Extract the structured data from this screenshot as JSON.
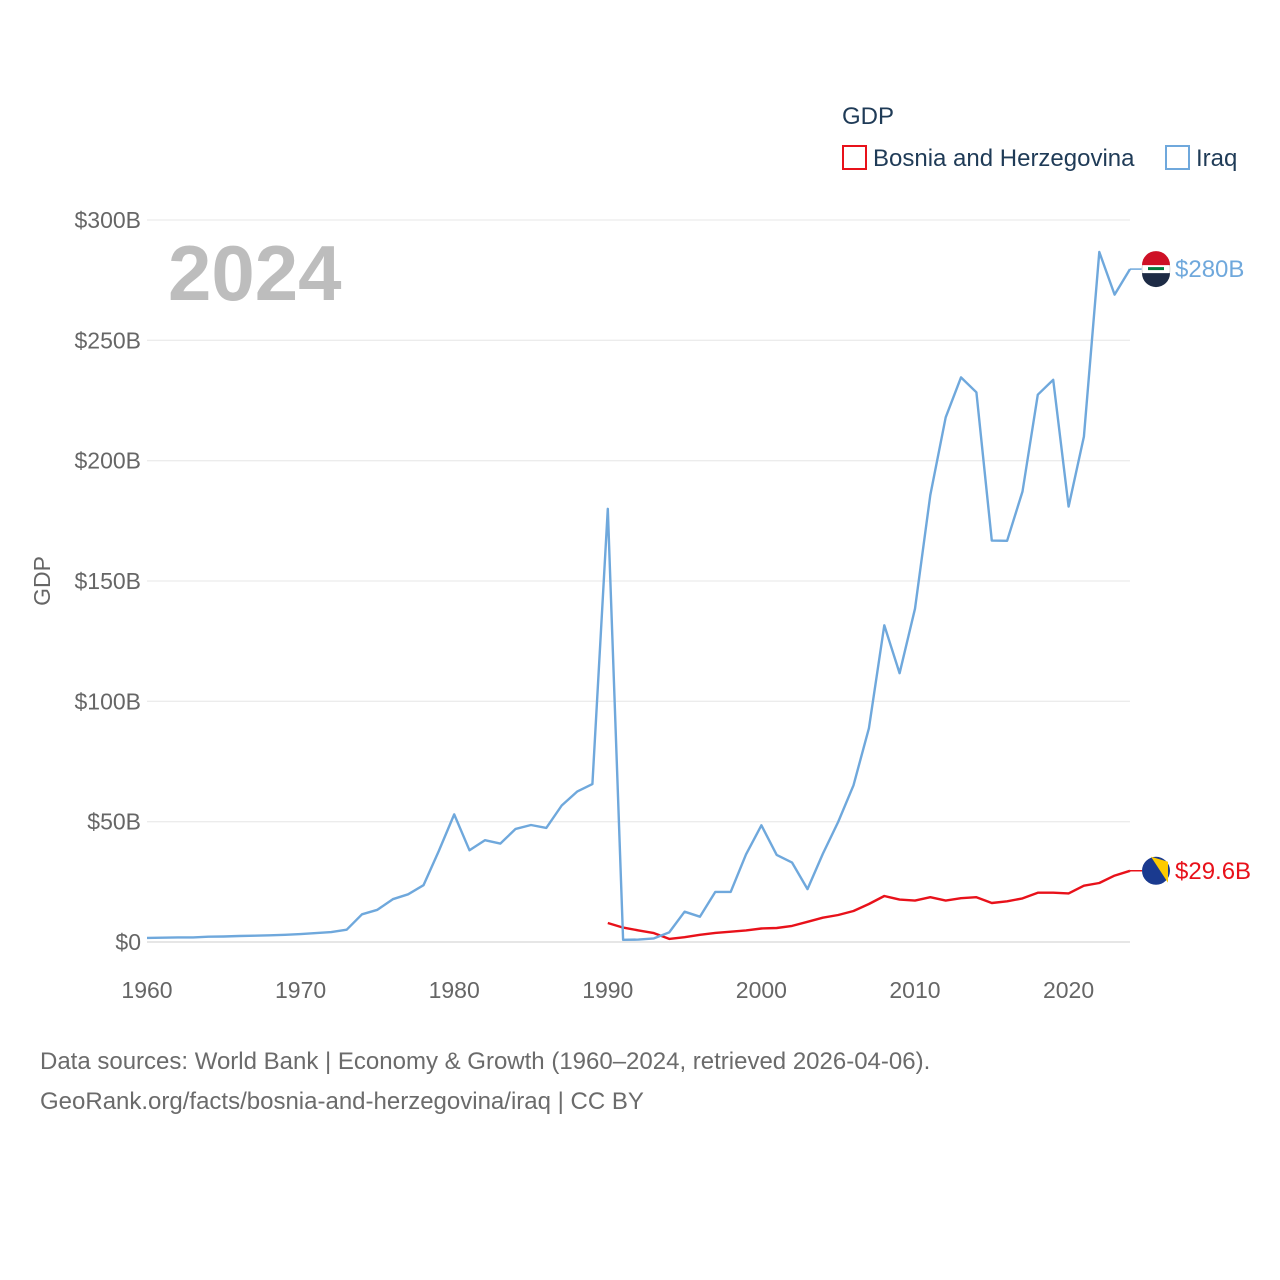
{
  "chart_data": {
    "type": "line",
    "title": "",
    "ylabel": "GDP",
    "xlabel": "",
    "year_label": "2024",
    "xlim": [
      1960,
      2024
    ],
    "ylim": [
      0,
      300
    ],
    "x_ticks": [
      1960,
      1970,
      1980,
      1990,
      2000,
      2010,
      2020
    ],
    "x_tick_labels": [
      "1960",
      "1970",
      "1980",
      "1990",
      "2000",
      "2010",
      "2020"
    ],
    "y_ticks": [
      0,
      50,
      100,
      150,
      200,
      250,
      300
    ],
    "y_tick_labels": [
      "$0",
      "$50B",
      "$100B",
      "$150B",
      "$200B",
      "$250B",
      "$300B"
    ],
    "legend": {
      "title": "GDP",
      "position": "top-right"
    },
    "series": [
      {
        "name": "Bosnia and Herzegovina",
        "color": "#e8111a",
        "end_label": "$29.6B",
        "flag_icon": "bosnia-flag-icon",
        "x": [
          1990,
          1991,
          1992,
          1993,
          1994,
          1995,
          1996,
          1997,
          1998,
          1999,
          2000,
          2001,
          2002,
          2003,
          2004,
          2005,
          2006,
          2007,
          2008,
          2009,
          2010,
          2011,
          2012,
          2013,
          2014,
          2015,
          2016,
          2017,
          2018,
          2019,
          2020,
          2021,
          2022,
          2023,
          2024
        ],
        "values": [
          7.9,
          6.0,
          4.8,
          3.7,
          1.3,
          2.0,
          3.0,
          3.8,
          4.3,
          4.8,
          5.6,
          5.8,
          6.7,
          8.4,
          10.1,
          11.2,
          12.9,
          15.8,
          19.1,
          17.6,
          17.2,
          18.6,
          17.2,
          18.2,
          18.6,
          16.2,
          16.9,
          18.1,
          20.5,
          20.5,
          20.2,
          23.4,
          24.5,
          27.6,
          29.6
        ]
      },
      {
        "name": "Iraq",
        "color": "#6fa8dc",
        "end_label": "$280B",
        "flag_icon": "iraq-flag-icon",
        "x": [
          1960,
          1961,
          1962,
          1963,
          1964,
          1965,
          1966,
          1967,
          1968,
          1969,
          1970,
          1971,
          1972,
          1973,
          1974,
          1975,
          1976,
          1977,
          1978,
          1979,
          1980,
          1981,
          1982,
          1983,
          1984,
          1985,
          1986,
          1987,
          1988,
          1989,
          1990,
          1991,
          1992,
          1993,
          1994,
          1995,
          1996,
          1997,
          1998,
          1999,
          2000,
          2001,
          2002,
          2003,
          2004,
          2005,
          2006,
          2007,
          2008,
          2009,
          2010,
          2011,
          2012,
          2013,
          2014,
          2015,
          2016,
          2017,
          2018,
          2019,
          2020,
          2021,
          2022,
          2023,
          2024
        ],
        "values": [
          1.7,
          1.8,
          1.9,
          1.9,
          2.2,
          2.3,
          2.5,
          2.6,
          2.8,
          3.0,
          3.3,
          3.7,
          4.1,
          5.1,
          11.5,
          13.4,
          17.8,
          19.8,
          23.6,
          37.8,
          53.0,
          38.1,
          42.3,
          40.9,
          47.0,
          48.6,
          47.4,
          56.7,
          62.5,
          65.6,
          180.0,
          0.9,
          1.0,
          1.5,
          4.0,
          12.6,
          10.5,
          20.8,
          20.8,
          36.4,
          48.5,
          36.2,
          33.0,
          22.0,
          36.6,
          49.9,
          65.1,
          88.8,
          131.6,
          111.7,
          138.5,
          185.7,
          218.0,
          234.6,
          228.4,
          166.8,
          166.7,
          187.2,
          227.4,
          233.6,
          180.9,
          210.0,
          286.7,
          269.0,
          279.6
        ]
      }
    ]
  },
  "footer": {
    "line1": "Data sources: World Bank | Economy & Growth (1960–2024, retrieved 2026-04-06).",
    "line2": "GeoRank.org/facts/bosnia-and-herzegovina/iraq | CC BY"
  }
}
